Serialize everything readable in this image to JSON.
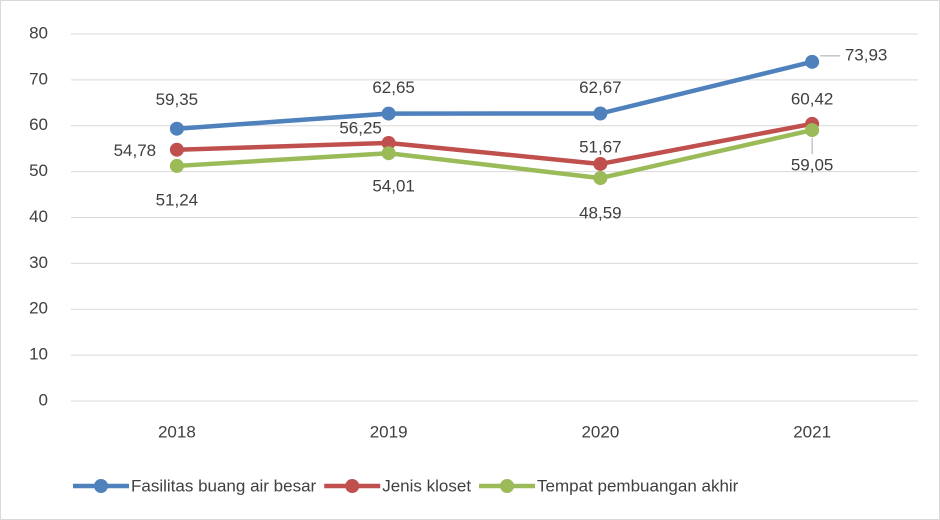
{
  "chart_data": {
    "type": "line",
    "categories": [
      "2018",
      "2019",
      "2020",
      "2021"
    ],
    "series": [
      {
        "name": "Fasilitas buang air besar",
        "color": "#4f81bd",
        "values": [
          59.35,
          62.65,
          62.67,
          73.93
        ],
        "value_labels": [
          "59,35",
          "62,65",
          "62,67",
          "73,93"
        ]
      },
      {
        "name": "Jenis kloset",
        "color": "#c0504d",
        "values": [
          54.78,
          56.25,
          51.67,
          60.42
        ],
        "value_labels": [
          "54,78",
          "56,25",
          "51,67",
          "60,42"
        ]
      },
      {
        "name": "Tempat pembuangan akhir",
        "color": "#9bbb59",
        "values": [
          51.24,
          54.01,
          48.59,
          59.05
        ],
        "value_labels": [
          "51,24",
          "54,01",
          "48,59",
          "59,05"
        ]
      }
    ],
    "ylim": [
      0,
      80
    ],
    "yticks": [
      0,
      10,
      20,
      30,
      40,
      50,
      60,
      70,
      80
    ],
    "grid": true,
    "legend": "bottom"
  }
}
